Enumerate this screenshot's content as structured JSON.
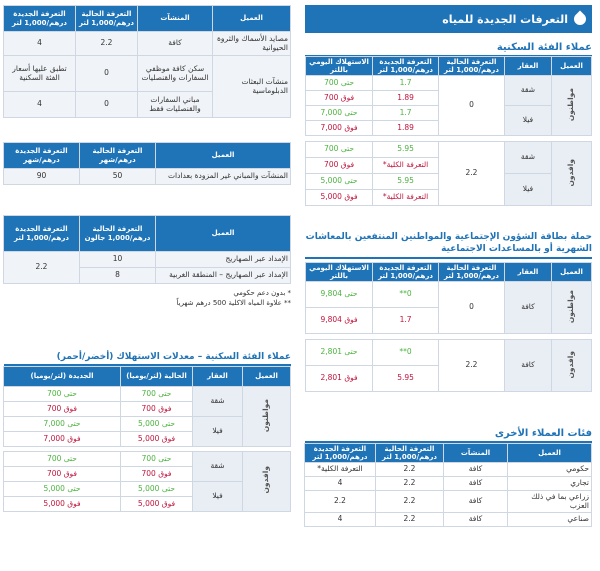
{
  "title": "التعرفات الجديدة للمياه",
  "residential": {
    "title": "عملاء الفئة السكنية",
    "headers": [
      "العميل",
      "العقار",
      "التعرفة الحالية درهم/1,000 لتر",
      "التعرفة الجديدة درهم/1,000 لتر",
      "الاستهلاك اليومي باللتر"
    ],
    "citizens": "مواطنون",
    "expats": "وافدون",
    "apartment": "شقة",
    "villa": "فيلا",
    "zero": "0",
    "rate22": "2.2",
    "c_rows": [
      {
        "new": "1.7",
        "cons": "حتى 700"
      },
      {
        "new": "1.89",
        "cons": "فوق 700"
      },
      {
        "new": "1.7",
        "cons": "حتى 7,000"
      },
      {
        "new": "1.89",
        "cons": "فوق 7,000"
      }
    ],
    "e_rows": [
      {
        "new": "5.95",
        "cons": "حتى 700",
        "note": ""
      },
      {
        "new": "التعرفة الكلية*",
        "cons": "فوق 700",
        "note": ""
      },
      {
        "new": "5.95",
        "cons": "حتى 5,000",
        "note": ""
      },
      {
        "new": "التعرفة الكلية*",
        "cons": "فوق 5,000",
        "note": ""
      }
    ]
  },
  "social": {
    "title": "حملة بطاقة الشؤون الإجتماعية والمواطنين المنتفعين بالمعاشات الشهرية أو بالمساعدات الاجتماعية",
    "headers": [
      "العميل",
      "العقار",
      "التعرفة الحالية درهم/1,000 لتر",
      "التعرفة الجديدة درهم/1,000 لتر",
      "الاستهلاك اليومي باللتر"
    ],
    "citizens": "مواطنون",
    "expats": "وافدون",
    "all": "كافة",
    "zero": "0",
    "rate22": "2.2",
    "rows": [
      {
        "new": "0**",
        "cons": "حتى 9,804"
      },
      {
        "new": "1.7",
        "cons": "فوق 9,804"
      },
      {
        "new": "0**",
        "cons": "حتى 2,801"
      },
      {
        "new": "5.95",
        "cons": "فوق 2,801"
      }
    ]
  },
  "other": {
    "title": "فئات العملاء الأخرى",
    "headers": [
      "العميل",
      "المنشآت",
      "التعرفة الحالية درهم/1,000 لتر",
      "التعرفة الجديدة درهم/1,000 لتر"
    ],
    "rows": [
      {
        "c": "حكومي",
        "f": "كافة",
        "cur": "2.2",
        "new": "التعرفة الكلية*"
      },
      {
        "c": "تجاري",
        "f": "كافة",
        "cur": "2.2",
        "new": "4"
      },
      {
        "c": "زراعي بما في ذلك العزب",
        "f": "كافة",
        "cur": "2.2",
        "new": "2.2"
      },
      {
        "c": "صناعي",
        "f": "كافة",
        "cur": "2.2",
        "new": "4"
      }
    ]
  },
  "top_left": {
    "headers": [
      "العميل",
      "المنشآت",
      "التعرفة الحالية درهم/1,000 لتر",
      "التعرفة الجديدة درهم/1,000 لتر"
    ],
    "rows": [
      {
        "c": "مصايد الأسماك والثروة الحيوانية",
        "f": "كافة",
        "cur": "2.2",
        "new": "4"
      },
      {
        "c": "منشآت البعثات الدبلوماسية",
        "f": "سكن كافة موظفي السفارات والقنصليات",
        "cur": "0",
        "new": "تطبق عليها أسعار الفئة السكنية"
      },
      {
        "c": "",
        "f": "مباني السفارات والقنصليات فقط",
        "cur": "0",
        "new": "4"
      }
    ]
  },
  "bulk": {
    "headers": [
      "العميل",
      "التعرفة الحالية درهم/شهر",
      "التعرفة الجديدة درهم/شهر"
    ],
    "c": "المنشآت والمباني غير المزودة بعدادات",
    "cur": "50",
    "new": "90"
  },
  "tanker": {
    "headers": [
      "العميل",
      "التعرفة الحالية درهم/1,000 جالون",
      "التعرفة الجديدة درهم/1,000 لتر"
    ],
    "r1": "الإمداد عبر الصهاريج",
    "r1v": "10",
    "r2": "الإمداد عبر الصهاريج – المنطقة الغربية",
    "r2v": "8",
    "new": "2.2"
  },
  "notes": {
    "n1": "* بدون دعم حكومي",
    "n2": "** علاوة المياه الاكلية 500 درهم شهرياً"
  },
  "rates": {
    "title": "عملاء الفئة السكنية – معدلات الاستهلاك (أخضر/أحمر)",
    "headers": [
      "العميل",
      "العقار",
      "الحالية (لتر/يوميا)",
      "الجديدة (لتر/يوميا)"
    ],
    "citizens": "مواطنون",
    "expats": "وافدون",
    "apartment": "شقة",
    "villa": "فيلا",
    "c_rows": [
      {
        "cur": "حتى 700",
        "new": "حتى 700"
      },
      {
        "cur": "فوق 700",
        "new": "فوق 700"
      },
      {
        "cur": "حتى 5,000",
        "new": "حتى 7,000"
      },
      {
        "cur": "فوق 5,000",
        "new": "فوق 7,000"
      }
    ],
    "e_rows": [
      {
        "cur": "حتى 700",
        "new": "حتى 700"
      },
      {
        "cur": "فوق 700",
        "new": "فوق 700"
      },
      {
        "cur": "حتى 5,000",
        "new": "حتى 5,000"
      },
      {
        "cur": "فوق 5,000",
        "new": "فوق 5,000"
      }
    ]
  }
}
